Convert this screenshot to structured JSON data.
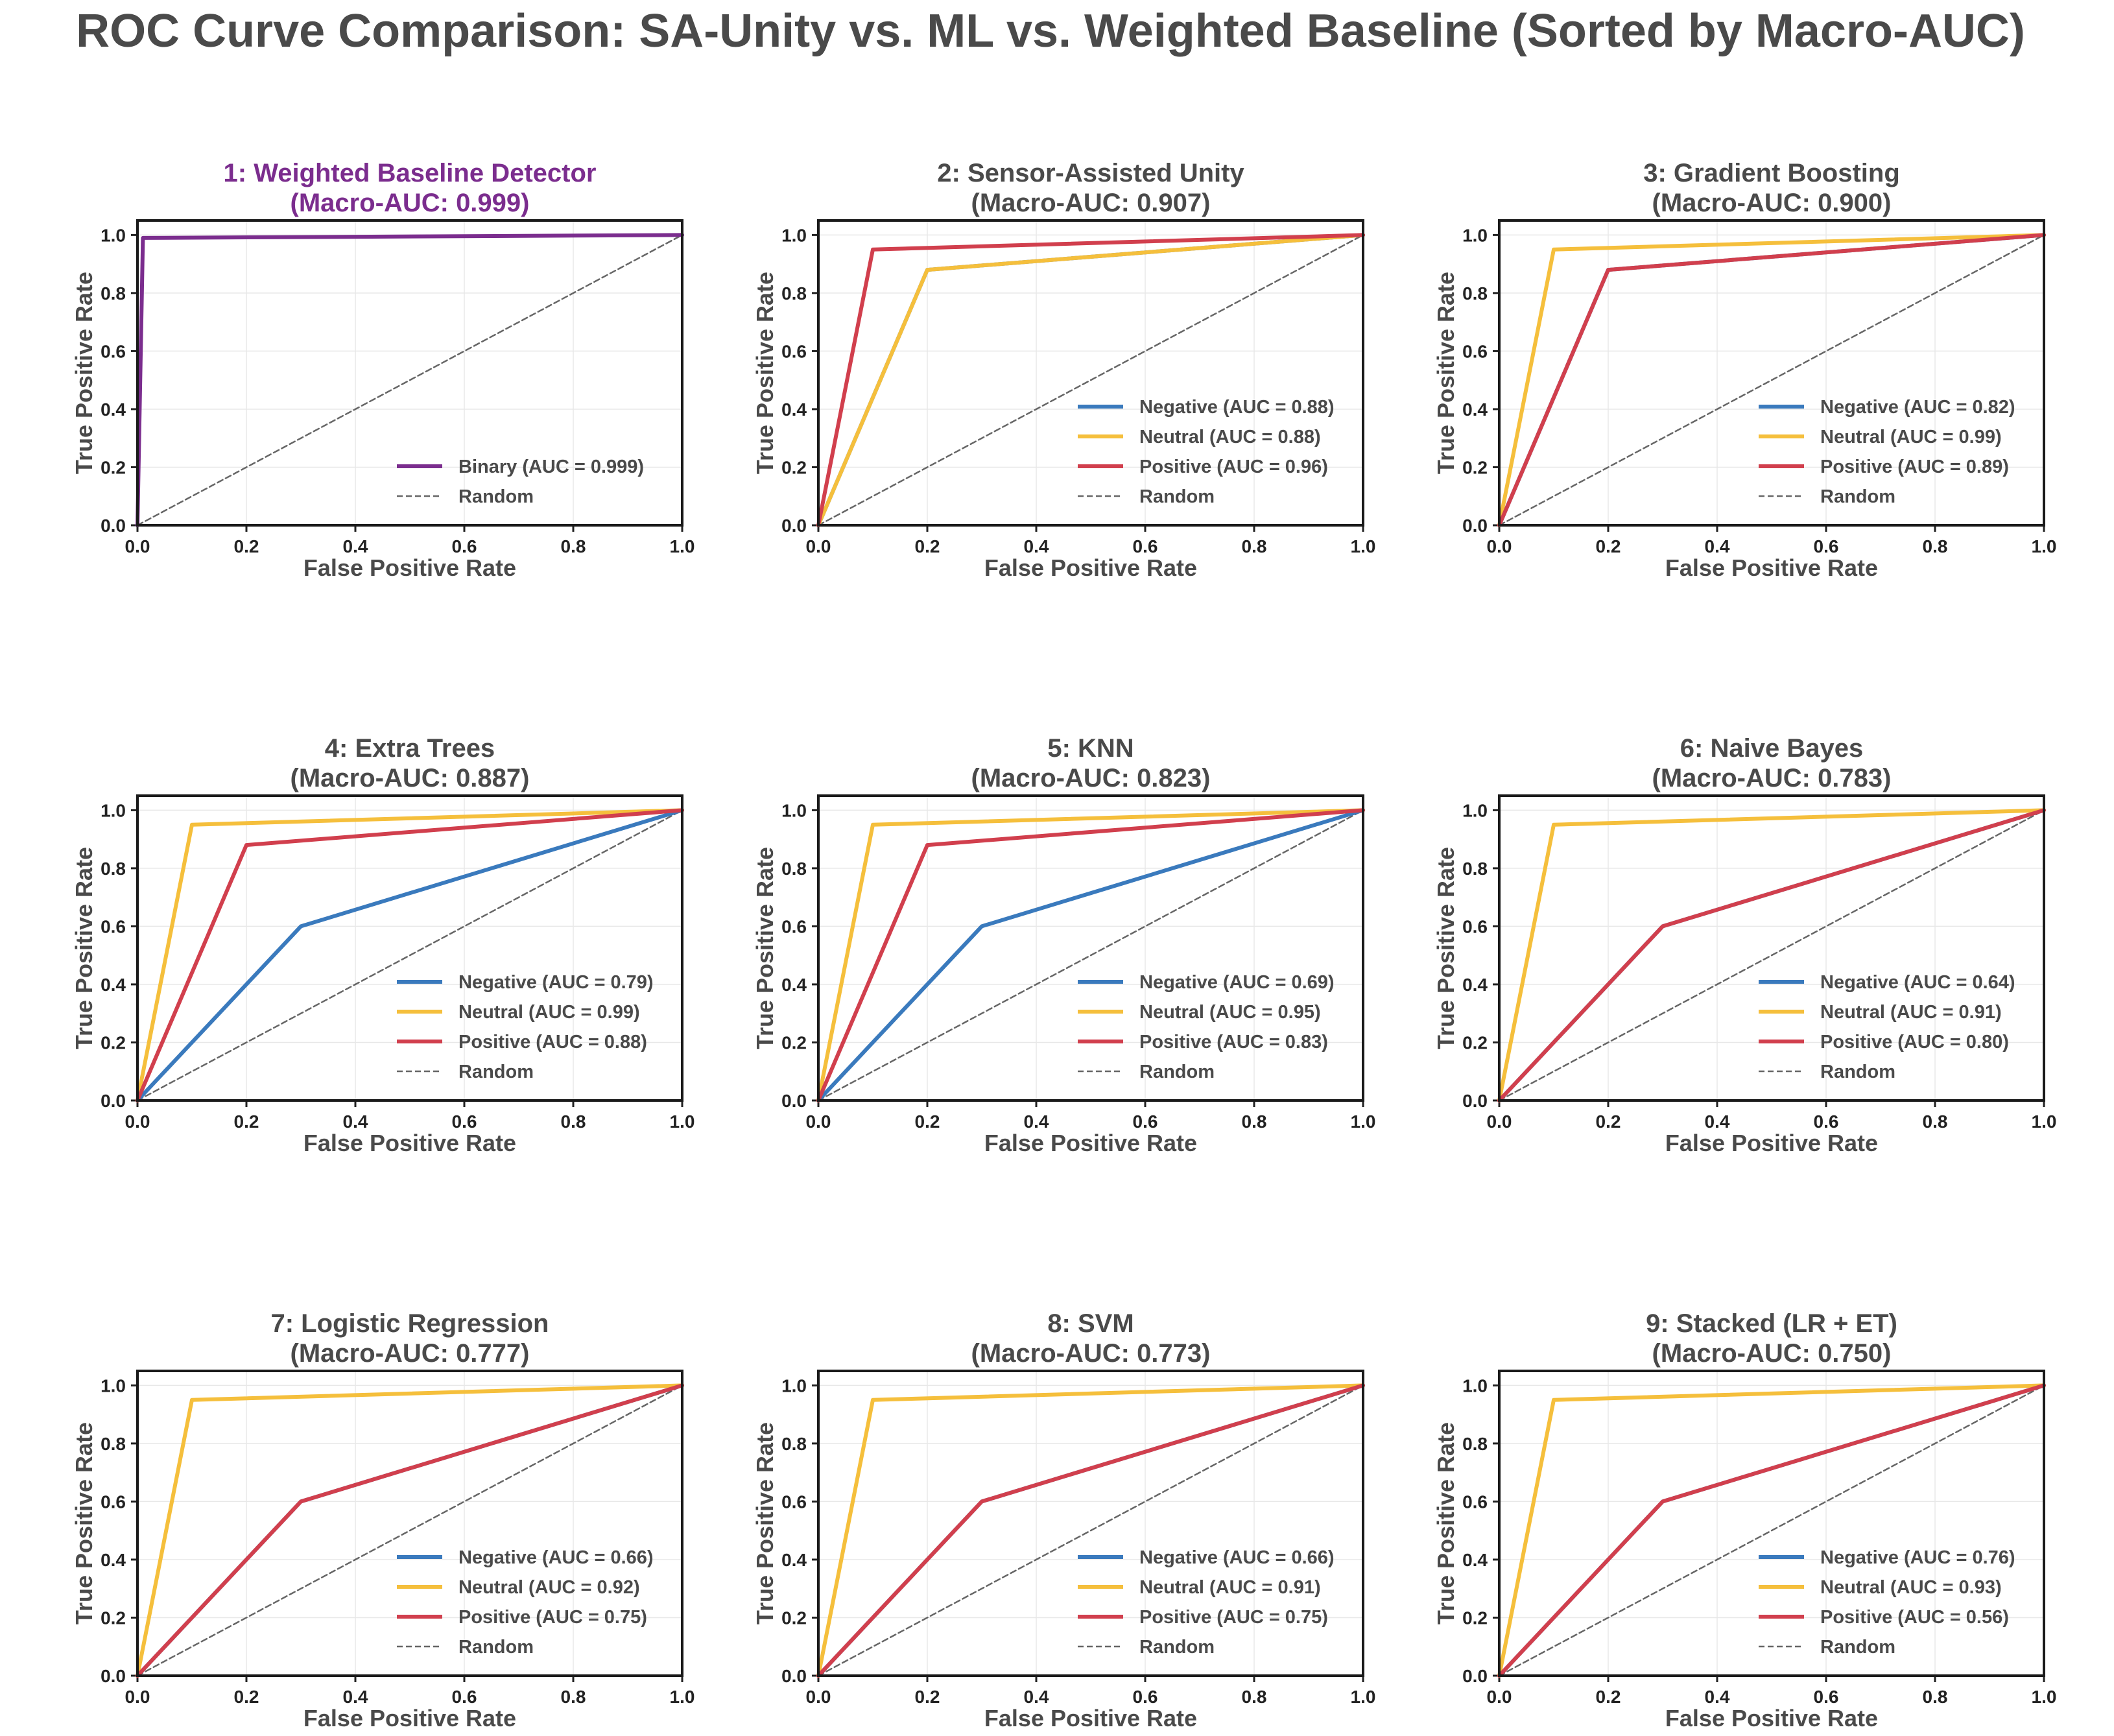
{
  "figure": {
    "title": "ROC Curve Comparison: SA-Unity vs. ML vs. Weighted Baseline (Sorted by Macro-AUC)"
  },
  "colors": {
    "negative": "#3a7abd",
    "neutral": "#f5bf3c",
    "positive": "#d13f4d",
    "binary": "#7b2d8e",
    "random": "#666666",
    "text": "#4a4a4a",
    "highlight_title": "#7b2d8e"
  },
  "chart_data": [
    {
      "type": "line",
      "title": "1: Weighted Baseline Detector",
      "subtitle": "(Macro-AUC: 0.999)",
      "highlight": true,
      "xlabel": "False Positive Rate",
      "ylabel": "True Positive Rate",
      "xlim": [
        0,
        1
      ],
      "ylim": [
        0,
        1.05
      ],
      "xticks": [
        "0.0",
        "0.2",
        "0.4",
        "0.6",
        "0.8",
        "1.0"
      ],
      "yticks": [
        "0.0",
        "0.2",
        "0.4",
        "0.6",
        "0.8",
        "1.0"
      ],
      "grid": true,
      "legend_position": "lower-right",
      "series": [
        {
          "name": "Binary (AUC = 0.999)",
          "class": "binary",
          "x": [
            0,
            0.01,
            1
          ],
          "y": [
            0,
            0.99,
            1
          ]
        },
        {
          "name": "Random",
          "class": "random",
          "x": [
            0,
            1
          ],
          "y": [
            0,
            1
          ]
        }
      ]
    },
    {
      "type": "line",
      "title": "2: Sensor-Assisted Unity",
      "subtitle": "(Macro-AUC: 0.907)",
      "highlight": false,
      "xlabel": "False Positive Rate",
      "ylabel": "True Positive Rate",
      "xlim": [
        0,
        1
      ],
      "ylim": [
        0,
        1.05
      ],
      "xticks": [
        "0.0",
        "0.2",
        "0.4",
        "0.6",
        "0.8",
        "1.0"
      ],
      "yticks": [
        "0.0",
        "0.2",
        "0.4",
        "0.6",
        "0.8",
        "1.0"
      ],
      "grid": true,
      "legend_position": "lower-right",
      "series": [
        {
          "name": "Negative (AUC = 0.88)",
          "class": "negative",
          "x": [
            0,
            0.2,
            1
          ],
          "y": [
            0,
            0.88,
            1
          ]
        },
        {
          "name": "Neutral (AUC = 0.88)",
          "class": "neutral",
          "x": [
            0,
            0.2,
            1
          ],
          "y": [
            0,
            0.88,
            1
          ]
        },
        {
          "name": "Positive (AUC = 0.96)",
          "class": "positive",
          "x": [
            0,
            0.1,
            1
          ],
          "y": [
            0,
            0.95,
            1
          ]
        },
        {
          "name": "Random",
          "class": "random",
          "x": [
            0,
            1
          ],
          "y": [
            0,
            1
          ]
        }
      ]
    },
    {
      "type": "line",
      "title": "3: Gradient Boosting",
      "subtitle": "(Macro-AUC: 0.900)",
      "highlight": false,
      "xlabel": "False Positive Rate",
      "ylabel": "True Positive Rate",
      "xlim": [
        0,
        1
      ],
      "ylim": [
        0,
        1.05
      ],
      "xticks": [
        "0.0",
        "0.2",
        "0.4",
        "0.6",
        "0.8",
        "1.0"
      ],
      "yticks": [
        "0.0",
        "0.2",
        "0.4",
        "0.6",
        "0.8",
        "1.0"
      ],
      "grid": true,
      "legend_position": "lower-right",
      "series": [
        {
          "name": "Negative (AUC = 0.82)",
          "class": "negative",
          "x": [
            0,
            0.2,
            1
          ],
          "y": [
            0,
            0.88,
            1
          ]
        },
        {
          "name": "Neutral (AUC = 0.99)",
          "class": "neutral",
          "x": [
            0,
            0.1,
            1
          ],
          "y": [
            0,
            0.95,
            1
          ]
        },
        {
          "name": "Positive (AUC = 0.89)",
          "class": "positive",
          "x": [
            0,
            0.2,
            1
          ],
          "y": [
            0,
            0.88,
            1
          ]
        },
        {
          "name": "Random",
          "class": "random",
          "x": [
            0,
            1
          ],
          "y": [
            0,
            1
          ]
        }
      ]
    },
    {
      "type": "line",
      "title": "4: Extra Trees",
      "subtitle": "(Macro-AUC: 0.887)",
      "highlight": false,
      "xlabel": "False Positive Rate",
      "ylabel": "True Positive Rate",
      "xlim": [
        0,
        1
      ],
      "ylim": [
        0,
        1.05
      ],
      "xticks": [
        "0.0",
        "0.2",
        "0.4",
        "0.6",
        "0.8",
        "1.0"
      ],
      "yticks": [
        "0.0",
        "0.2",
        "0.4",
        "0.6",
        "0.8",
        "1.0"
      ],
      "grid": true,
      "legend_position": "lower-right",
      "series": [
        {
          "name": "Negative (AUC = 0.79)",
          "class": "negative",
          "x": [
            0,
            0.3,
            1
          ],
          "y": [
            0,
            0.6,
            1
          ]
        },
        {
          "name": "Neutral (AUC = 0.99)",
          "class": "neutral",
          "x": [
            0,
            0.1,
            1
          ],
          "y": [
            0,
            0.95,
            1
          ]
        },
        {
          "name": "Positive (AUC = 0.88)",
          "class": "positive",
          "x": [
            0,
            0.2,
            1
          ],
          "y": [
            0,
            0.88,
            1
          ]
        },
        {
          "name": "Random",
          "class": "random",
          "x": [
            0,
            1
          ],
          "y": [
            0,
            1
          ]
        }
      ]
    },
    {
      "type": "line",
      "title": "5: KNN",
      "subtitle": "(Macro-AUC: 0.823)",
      "highlight": false,
      "xlabel": "False Positive Rate",
      "ylabel": "True Positive Rate",
      "xlim": [
        0,
        1
      ],
      "ylim": [
        0,
        1.05
      ],
      "xticks": [
        "0.0",
        "0.2",
        "0.4",
        "0.6",
        "0.8",
        "1.0"
      ],
      "yticks": [
        "0.0",
        "0.2",
        "0.4",
        "0.6",
        "0.8",
        "1.0"
      ],
      "grid": true,
      "legend_position": "lower-right",
      "series": [
        {
          "name": "Negative (AUC = 0.69)",
          "class": "negative",
          "x": [
            0,
            0.3,
            1
          ],
          "y": [
            0,
            0.6,
            1
          ]
        },
        {
          "name": "Neutral (AUC = 0.95)",
          "class": "neutral",
          "x": [
            0,
            0.1,
            1
          ],
          "y": [
            0,
            0.95,
            1
          ]
        },
        {
          "name": "Positive (AUC = 0.83)",
          "class": "positive",
          "x": [
            0,
            0.2,
            1
          ],
          "y": [
            0,
            0.88,
            1
          ]
        },
        {
          "name": "Random",
          "class": "random",
          "x": [
            0,
            1
          ],
          "y": [
            0,
            1
          ]
        }
      ]
    },
    {
      "type": "line",
      "title": "6: Naive Bayes",
      "subtitle": "(Macro-AUC: 0.783)",
      "highlight": false,
      "xlabel": "False Positive Rate",
      "ylabel": "True Positive Rate",
      "xlim": [
        0,
        1
      ],
      "ylim": [
        0,
        1.05
      ],
      "xticks": [
        "0.0",
        "0.2",
        "0.4",
        "0.6",
        "0.8",
        "1.0"
      ],
      "yticks": [
        "0.0",
        "0.2",
        "0.4",
        "0.6",
        "0.8",
        "1.0"
      ],
      "grid": true,
      "legend_position": "lower-right",
      "series": [
        {
          "name": "Negative (AUC = 0.64)",
          "class": "negative",
          "x": [
            0,
            0.3,
            1
          ],
          "y": [
            0,
            0.6,
            1
          ]
        },
        {
          "name": "Neutral (AUC = 0.91)",
          "class": "neutral",
          "x": [
            0,
            0.1,
            1
          ],
          "y": [
            0,
            0.95,
            1
          ]
        },
        {
          "name": "Positive (AUC = 0.80)",
          "class": "positive",
          "x": [
            0,
            0.3,
            1
          ],
          "y": [
            0,
            0.6,
            1
          ]
        },
        {
          "name": "Random",
          "class": "random",
          "x": [
            0,
            1
          ],
          "y": [
            0,
            1
          ]
        }
      ]
    },
    {
      "type": "line",
      "title": "7: Logistic Regression",
      "subtitle": "(Macro-AUC: 0.777)",
      "highlight": false,
      "xlabel": "False Positive Rate",
      "ylabel": "True Positive Rate",
      "xlim": [
        0,
        1
      ],
      "ylim": [
        0,
        1.05
      ],
      "xticks": [
        "0.0",
        "0.2",
        "0.4",
        "0.6",
        "0.8",
        "1.0"
      ],
      "yticks": [
        "0.0",
        "0.2",
        "0.4",
        "0.6",
        "0.8",
        "1.0"
      ],
      "grid": true,
      "legend_position": "lower-right",
      "series": [
        {
          "name": "Negative (AUC = 0.66)",
          "class": "negative",
          "x": [
            0,
            0.3,
            1
          ],
          "y": [
            0,
            0.6,
            1
          ]
        },
        {
          "name": "Neutral (AUC = 0.92)",
          "class": "neutral",
          "x": [
            0,
            0.1,
            1
          ],
          "y": [
            0,
            0.95,
            1
          ]
        },
        {
          "name": "Positive (AUC = 0.75)",
          "class": "positive",
          "x": [
            0,
            0.3,
            1
          ],
          "y": [
            0,
            0.6,
            1
          ]
        },
        {
          "name": "Random",
          "class": "random",
          "x": [
            0,
            1
          ],
          "y": [
            0,
            1
          ]
        }
      ]
    },
    {
      "type": "line",
      "title": "8: SVM",
      "subtitle": "(Macro-AUC: 0.773)",
      "highlight": false,
      "xlabel": "False Positive Rate",
      "ylabel": "True Positive Rate",
      "xlim": [
        0,
        1
      ],
      "ylim": [
        0,
        1.05
      ],
      "xticks": [
        "0.0",
        "0.2",
        "0.4",
        "0.6",
        "0.8",
        "1.0"
      ],
      "yticks": [
        "0.0",
        "0.2",
        "0.4",
        "0.6",
        "0.8",
        "1.0"
      ],
      "grid": true,
      "legend_position": "lower-right",
      "series": [
        {
          "name": "Negative (AUC = 0.66)",
          "class": "negative",
          "x": [
            0,
            0.3,
            1
          ],
          "y": [
            0,
            0.6,
            1
          ]
        },
        {
          "name": "Neutral (AUC = 0.91)",
          "class": "neutral",
          "x": [
            0,
            0.1,
            1
          ],
          "y": [
            0,
            0.95,
            1
          ]
        },
        {
          "name": "Positive (AUC = 0.75)",
          "class": "positive",
          "x": [
            0,
            0.3,
            1
          ],
          "y": [
            0,
            0.6,
            1
          ]
        },
        {
          "name": "Random",
          "class": "random",
          "x": [
            0,
            1
          ],
          "y": [
            0,
            1
          ]
        }
      ]
    },
    {
      "type": "line",
      "title": "9: Stacked (LR + ET)",
      "subtitle": "(Macro-AUC: 0.750)",
      "highlight": false,
      "xlabel": "False Positive Rate",
      "ylabel": "True Positive Rate",
      "xlim": [
        0,
        1
      ],
      "ylim": [
        0,
        1.05
      ],
      "xticks": [
        "0.0",
        "0.2",
        "0.4",
        "0.6",
        "0.8",
        "1.0"
      ],
      "yticks": [
        "0.0",
        "0.2",
        "0.4",
        "0.6",
        "0.8",
        "1.0"
      ],
      "grid": true,
      "legend_position": "lower-right",
      "series": [
        {
          "name": "Negative (AUC = 0.76)",
          "class": "negative",
          "x": [
            0,
            0.3,
            1
          ],
          "y": [
            0,
            0.6,
            1
          ]
        },
        {
          "name": "Neutral (AUC = 0.93)",
          "class": "neutral",
          "x": [
            0,
            0.1,
            1
          ],
          "y": [
            0,
            0.95,
            1
          ]
        },
        {
          "name": "Positive (AUC = 0.56)",
          "class": "positive",
          "x": [
            0,
            0.3,
            1
          ],
          "y": [
            0,
            0.6,
            1
          ]
        },
        {
          "name": "Random",
          "class": "random",
          "x": [
            0,
            1
          ],
          "y": [
            0,
            1
          ]
        }
      ]
    }
  ]
}
